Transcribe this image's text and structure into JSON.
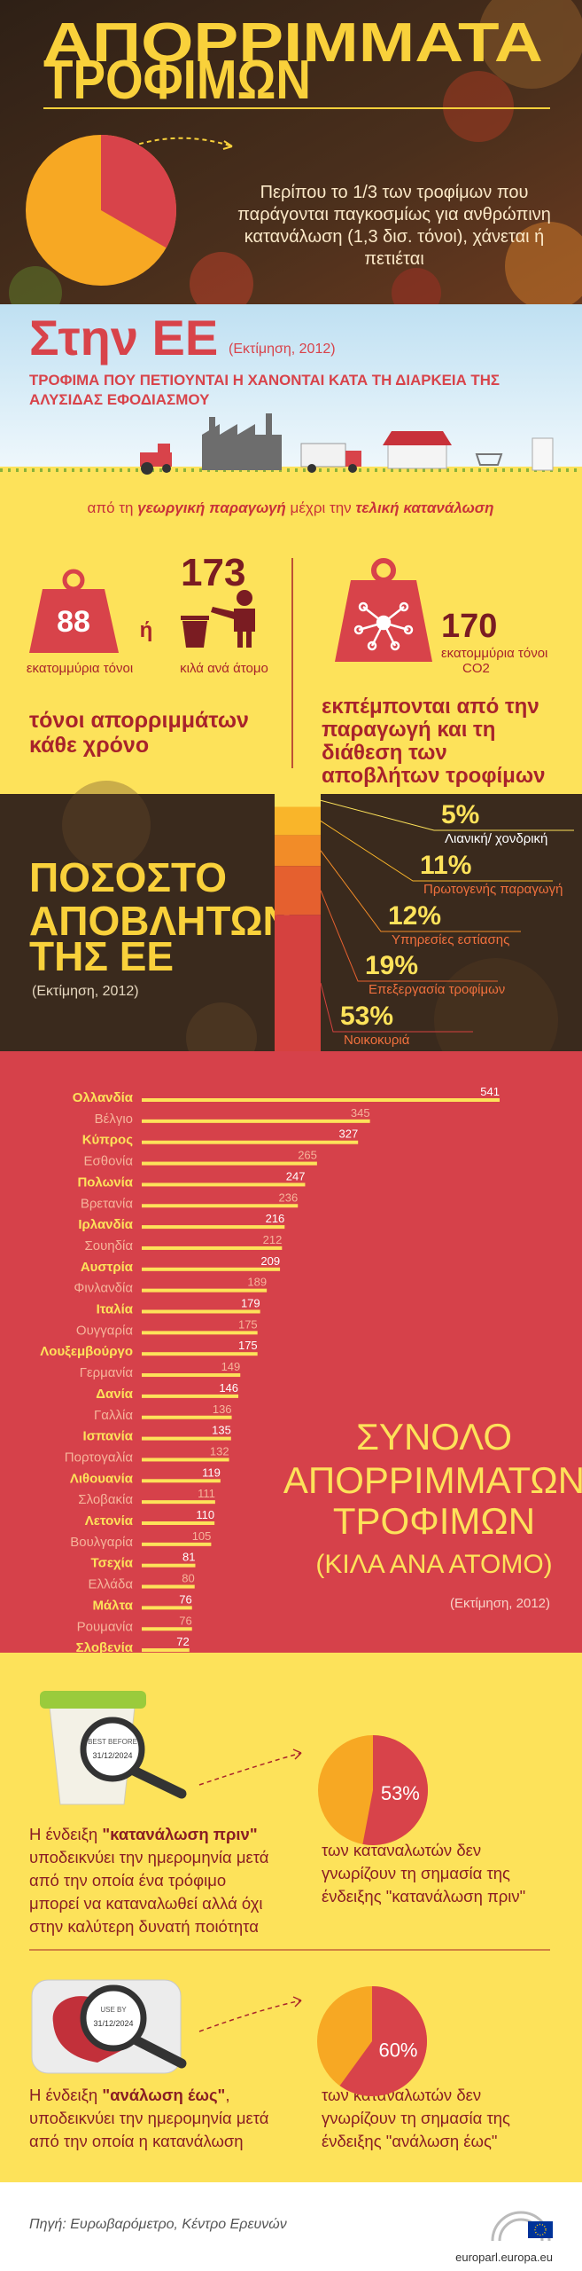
{
  "header": {
    "title": [
      "ΑΠΟΡΡΙΜΜΑΤΑ",
      "ΤΡΟΦΙΜΩΝ"
    ],
    "intro": [
      "Περίπου το 1/3 των τροφίμων που",
      "παράγονται παγκοσμίως για ανθρώπινη",
      "κατανάλωση (1,3 δισ. τόνοι), χάνεται ή",
      "πετιέται"
    ]
  },
  "eu": {
    "title": "Στην ΕΕ",
    "note": "(Εκτίμηση, 2012)",
    "subtitle": [
      "ΤΡΟΦΙΜΑ ΠΟΥ ΠΕΤΙΟΥΝΤΑΙ Η ΧΑΝΟΝΤΑΙ ΚΑΤΑ ΤΗ ΔΙΑΡΚΕΙΑ ΤΗΣ",
      "ΑΛΥΣΙΔΑΣ ΕΦΟΔΙΑΣΜΟΥ"
    ],
    "chain": [
      "από τη ",
      "γεωργική παραγωγή",
      " μέχρι την ",
      "τελική κατανάλωση"
    ]
  },
  "waste": {
    "tonnes": 88,
    "tonnes_unit": "εκατομμύρια τόνοι",
    "or": "ή",
    "per_person": 173,
    "per_person_unit": "κιλά ανά άτομο",
    "caption": [
      "τόνοι απορριμμάτων",
      "κάθε χρόνο"
    ]
  },
  "emissions": {
    "value": 170,
    "unit": [
      "εκατομμύρια τόνοι",
      "CO2"
    ],
    "caption": [
      "εκπέμπονται από την",
      "παραγωγή και τη",
      "διάθεση των",
      "αποβλήτων τροφίμων"
    ]
  },
  "chart_data": [
    {
      "type": "pie",
      "values": [
        33.3
      ],
      "color": "#d8434a",
      "base_color": "#f7a823"
    },
    {
      "type": "stacked_bar",
      "title": [
        "ΠΟΣΟΣΤΟ",
        "ΑΠΟΒΛΗΤΩΝ",
        "ΤΗΣ ΕΕ"
      ],
      "note": "(Εκτίμηση, 2012)",
      "categories": [
        "Λιανική/ χονδρική",
        "Πρωτογενής παραγωγή",
        "Υπηρεσίες εστίασης",
        "Επεξεργασία τροφίμων",
        "Νοικοκυριά"
      ],
      "values": [
        5,
        11,
        12,
        19,
        53
      ],
      "value_labels": [
        "5%",
        "11%",
        "12%",
        "19%",
        "53%"
      ],
      "colors": [
        "#fde25a",
        "#f9b52a",
        "#f28c28",
        "#e5602f",
        "#d5413f"
      ]
    },
    {
      "type": "bar",
      "orientation": "horizontal",
      "title": [
        "ΣΥΝΟΛΟ",
        "ΑΠΟΡΡΙΜΜΑΤΩΝ",
        "ΤΡΟΦΙΜΩΝ",
        "(ΚΙΛΑ ΑΝΑ ΑΤΟΜΟ)"
      ],
      "note": "(Εκτίμηση, 2012)",
      "categories": [
        "Ολλανδία",
        "Βέλγιο",
        "Κύπρος",
        "Εσθονία",
        "Πολωνία",
        "Βρετανία",
        "Ιρλανδία",
        "Σουηδία",
        "Αυστρία",
        "Φινλανδία",
        "Ιταλία",
        "Ουγγαρία",
        "Λουξεμβούργο",
        "Γερμανία",
        "Δανία",
        "Γαλλία",
        "Ισπανία",
        "Πορτογαλία",
        "Λιθουανία",
        "Σλοβακία",
        "Λετονία",
        "Βουλγαρία",
        "Τσεχία",
        "Ελλάδα",
        "Μάλτα",
        "Ρουμανία",
        "Σλοβενία"
      ],
      "values": [
        541,
        345,
        327,
        265,
        247,
        236,
        216,
        212,
        209,
        189,
        179,
        175,
        175,
        149,
        146,
        136,
        135,
        132,
        119,
        111,
        110,
        105,
        81,
        80,
        76,
        76,
        72
      ],
      "color": "#fde25a"
    },
    {
      "type": "pie",
      "values": [
        53
      ],
      "value_labels": [
        "53%"
      ],
      "color": "#d8434a",
      "base_color": "#f7a823"
    },
    {
      "type": "pie",
      "values": [
        60
      ],
      "value_labels": [
        "60%"
      ],
      "color": "#d8434a",
      "base_color": "#f7a823"
    }
  ],
  "best_before": {
    "tag": "BEST BEFORE",
    "date": "31/12/2024",
    "text": [
      "Η ένδειξη ",
      "\"κατανάλωση πριν\"",
      "υποδεικνύει την ημερομηνία μετά",
      "από την οποία ένα τρόφιμο",
      "μπορεί να καταναλωθεί αλλά όχι",
      "στην καλύτερη δυνατή ποιότητα"
    ],
    "caption": [
      "των καταναλωτών δεν",
      "γνωρίζουν τη σημασία της",
      "ένδειξης \"κατανάλωση πριν\""
    ]
  },
  "use_by": {
    "tag": "USE BY",
    "date": "31/12/2024",
    "text": [
      "Η ένδειξη ",
      "\"ανάλωση έως\"",
      ",",
      "υποδεικνύει την ημερομηνία μετά",
      "από την οποία η κατανάλωση"
    ],
    "caption": [
      "των καταναλωτών δεν",
      "γνωρίζουν τη σημασία της",
      "ένδειξης \"ανάλωση έως\""
    ]
  },
  "footer": {
    "source": "Πηγή: Ευρωβαρόμετρο, Κέντρο Ερευνών",
    "site": "europarl.europa.eu"
  }
}
